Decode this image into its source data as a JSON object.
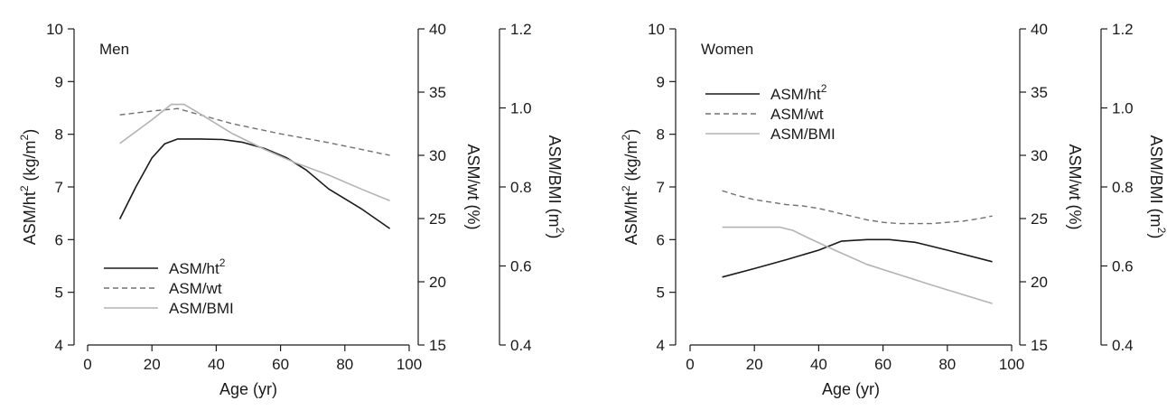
{
  "chart_data": [
    {
      "type": "line",
      "panel_label": "Men",
      "xlabel": "Age (yr)",
      "xlim": [
        0,
        100
      ],
      "xticks": [
        0,
        20,
        40,
        60,
        80,
        100
      ],
      "y_axes": [
        {
          "key": "ht2",
          "label": "ASM/ht",
          "label_sup": "2",
          "label_suffix": " (kg/m",
          "label_suffix_sup": "2",
          "label_close": ")",
          "lim": [
            4,
            10
          ],
          "ticks": [
            4,
            5,
            6,
            7,
            8,
            9,
            10
          ],
          "tick_labels": [
            "4",
            "5",
            "6",
            "7",
            "8",
            "9",
            "10"
          ]
        },
        {
          "key": "wt",
          "label": "ASM/wt (%)",
          "lim": [
            15,
            40
          ],
          "ticks": [
            15,
            20,
            25,
            30,
            35,
            40
          ],
          "tick_labels": [
            "15",
            "20",
            "25",
            "30",
            "35",
            "40"
          ]
        },
        {
          "key": "bmi",
          "label": "ASM/BMI (m",
          "label_sup": "2",
          "label_close": ")",
          "lim": [
            0.4,
            1.2
          ],
          "ticks": [
            0.4,
            0.6,
            0.8,
            1.0,
            1.2
          ],
          "tick_labels": [
            "0.4",
            "0.6",
            "0.8",
            "1.0",
            "1.2"
          ]
        }
      ],
      "legend_position": "bottom-left",
      "series": [
        {
          "name": "ASM/ht",
          "name_sup": "2",
          "axis": "ht2",
          "style": "solid",
          "color": "#1a1a1a",
          "x": [
            10,
            15,
            20,
            24,
            28,
            35,
            42,
            48,
            55,
            62,
            68,
            75,
            85,
            94
          ],
          "y": [
            6.39,
            7.0,
            7.55,
            7.82,
            7.91,
            7.91,
            7.9,
            7.85,
            7.73,
            7.55,
            7.32,
            6.96,
            6.59,
            6.21
          ]
        },
        {
          "name": "ASM/wt",
          "axis": "wt",
          "style": "dashed",
          "color": "#707070",
          "x": [
            10,
            20,
            28,
            35,
            45,
            60,
            75,
            94
          ],
          "y": [
            33.2,
            33.5,
            33.7,
            33.2,
            32.5,
            31.7,
            31.0,
            30.0
          ]
        },
        {
          "name": "ASM/BMI",
          "axis": "bmi",
          "style": "solid",
          "color": "#b3b3b3",
          "x": [
            10,
            20,
            26,
            30,
            35,
            45,
            55,
            65,
            75,
            85,
            94
          ],
          "y": [
            0.91,
            0.97,
            1.009,
            1.009,
            0.985,
            0.935,
            0.895,
            0.86,
            0.83,
            0.795,
            0.765
          ]
        }
      ]
    },
    {
      "type": "line",
      "panel_label": "Women",
      "xlabel": "Age (yr)",
      "xlim": [
        0,
        100
      ],
      "xticks": [
        0,
        20,
        40,
        60,
        80,
        100
      ],
      "y_axes": [
        {
          "key": "ht2",
          "label": "ASM/ht",
          "label_sup": "2",
          "label_suffix": " (kg/m",
          "label_suffix_sup": "2",
          "label_close": ")",
          "lim": [
            4,
            10
          ],
          "ticks": [
            4,
            5,
            6,
            7,
            8,
            9,
            10
          ],
          "tick_labels": [
            "4",
            "5",
            "6",
            "7",
            "8",
            "9",
            "10"
          ]
        },
        {
          "key": "wt",
          "label": "ASM/wt (%)",
          "lim": [
            15,
            40
          ],
          "ticks": [
            15,
            20,
            25,
            30,
            35,
            40
          ],
          "tick_labels": [
            "15",
            "20",
            "25",
            "30",
            "35",
            "40"
          ]
        },
        {
          "key": "bmi",
          "label": "ASM/BMI (m",
          "label_sup": "2",
          "label_close": ")",
          "lim": [
            0.4,
            1.2
          ],
          "ticks": [
            0.4,
            0.6,
            0.8,
            1.0,
            1.2
          ],
          "tick_labels": [
            "0.4",
            "0.6",
            "0.8",
            "1.0",
            "1.2"
          ]
        }
      ],
      "legend_position": "top-left",
      "series": [
        {
          "name": "ASM/ht",
          "name_sup": "2",
          "axis": "ht2",
          "style": "solid",
          "color": "#1a1a1a",
          "x": [
            10,
            20,
            30,
            40,
            47,
            55,
            62,
            70,
            80,
            94
          ],
          "y": [
            5.29,
            5.45,
            5.62,
            5.8,
            5.97,
            6.0,
            6.0,
            5.95,
            5.8,
            5.58
          ]
        },
        {
          "name": "ASM/wt",
          "axis": "wt",
          "style": "dashed",
          "color": "#707070",
          "x": [
            10,
            15,
            20,
            25,
            30,
            35,
            40,
            45,
            50,
            55,
            60,
            65,
            70,
            75,
            80,
            85,
            90,
            94
          ],
          "y": [
            27.2,
            26.8,
            26.5,
            26.3,
            26.1,
            26.0,
            25.8,
            25.5,
            25.2,
            24.9,
            24.7,
            24.6,
            24.6,
            24.6,
            24.7,
            24.8,
            25.0,
            25.2
          ]
        },
        {
          "name": "ASM/BMI",
          "axis": "bmi",
          "style": "solid",
          "color": "#b3b3b3",
          "x": [
            10,
            20,
            28,
            32,
            37,
            45,
            55,
            65,
            75,
            85,
            94
          ],
          "y": [
            0.698,
            0.698,
            0.698,
            0.69,
            0.67,
            0.64,
            0.604,
            0.578,
            0.552,
            0.527,
            0.505
          ]
        }
      ]
    }
  ]
}
